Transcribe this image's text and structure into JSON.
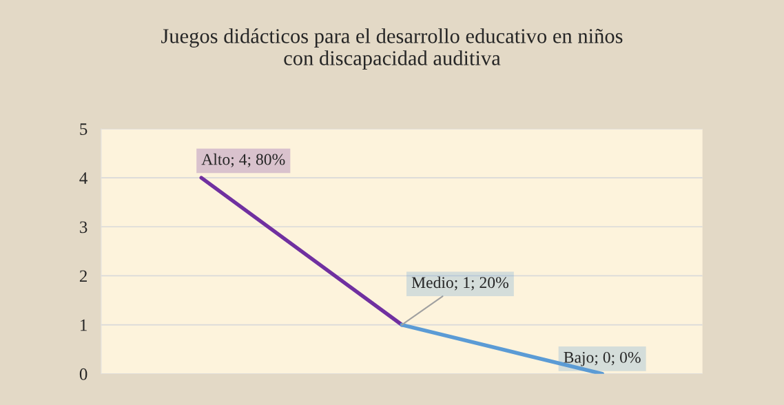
{
  "chart_data": {
    "type": "line",
    "title": "Juegos didácticos para el desarrollo educativo en niños\ncon discapacidad auditiva",
    "categories": [
      null,
      null,
      null
    ],
    "series": [
      {
        "color": "#7030a0",
        "values": [
          4,
          1,
          null
        ],
        "value_labels": [
          "Alto; 4; 80%",
          null,
          null
        ]
      },
      {
        "color": "#5b9bd5",
        "values": [
          null,
          1,
          0
        ],
        "value_labels": [
          null,
          "Medio; 1; 20%",
          "Bajo; 0; 0%"
        ]
      }
    ],
    "ylim": [
      0,
      5
    ],
    "yticks": [
      0,
      1,
      2,
      3,
      4,
      5
    ],
    "grid": "y",
    "legend": false,
    "marker": "none",
    "line_style": "solid"
  }
}
